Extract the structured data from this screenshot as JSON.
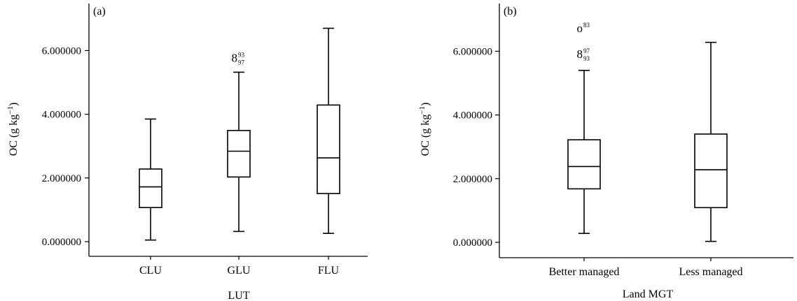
{
  "chart_data": [
    {
      "panel_label": "(a)",
      "type": "boxplot",
      "xlabel": "LUT",
      "ylabel": "OC (g kg",
      "ylabel_sup": "−1",
      "ylabel_close": ")",
      "ylim": [
        0,
        7.1
      ],
      "yticks": [
        0,
        2,
        4,
        6
      ],
      "ytick_labels": [
        "0.000000",
        "2.000000",
        "4.000000",
        "6.000000"
      ],
      "categories": [
        "CLU",
        "GLU",
        "FLU"
      ],
      "boxes": [
        {
          "whisker_low": 0.05,
          "q1": 1.07,
          "median": 1.72,
          "q3": 2.28,
          "whisker_high": 3.85
        },
        {
          "whisker_low": 0.32,
          "q1": 2.03,
          "median": 2.84,
          "q3": 3.49,
          "whisker_high": 5.32
        },
        {
          "whisker_low": 0.26,
          "q1": 1.51,
          "median": 2.63,
          "q3": 4.29,
          "whisker_high": 6.7
        }
      ],
      "outliers": [
        {
          "category_index": 1,
          "value": 5.78,
          "marker": "8",
          "sup": "93",
          "sub": "97"
        }
      ]
    },
    {
      "panel_label": "(b)",
      "type": "boxplot",
      "xlabel": "Land MGT",
      "ylabel": "OC (g kg",
      "ylabel_sup": "−1",
      "ylabel_close": ")",
      "ylim": [
        0,
        7.1
      ],
      "yticks": [
        0,
        2,
        4,
        6
      ],
      "ytick_labels": [
        "0.000000",
        "2.000000",
        "4.000000",
        "6.000000"
      ],
      "categories": [
        "Better managed",
        "Less managed"
      ],
      "boxes": [
        {
          "whisker_low": 0.28,
          "q1": 1.68,
          "median": 2.38,
          "q3": 3.22,
          "whisker_high": 5.4
        },
        {
          "whisker_low": 0.03,
          "q1": 1.09,
          "median": 2.28,
          "q3": 3.4,
          "whisker_high": 6.28
        }
      ],
      "outliers": [
        {
          "category_index": 0,
          "value": 5.92,
          "marker": "8",
          "sup": "97",
          "sub": "93"
        },
        {
          "category_index": 0,
          "value": 6.73,
          "marker": "o",
          "sup": "83",
          "sub": ""
        }
      ]
    }
  ]
}
